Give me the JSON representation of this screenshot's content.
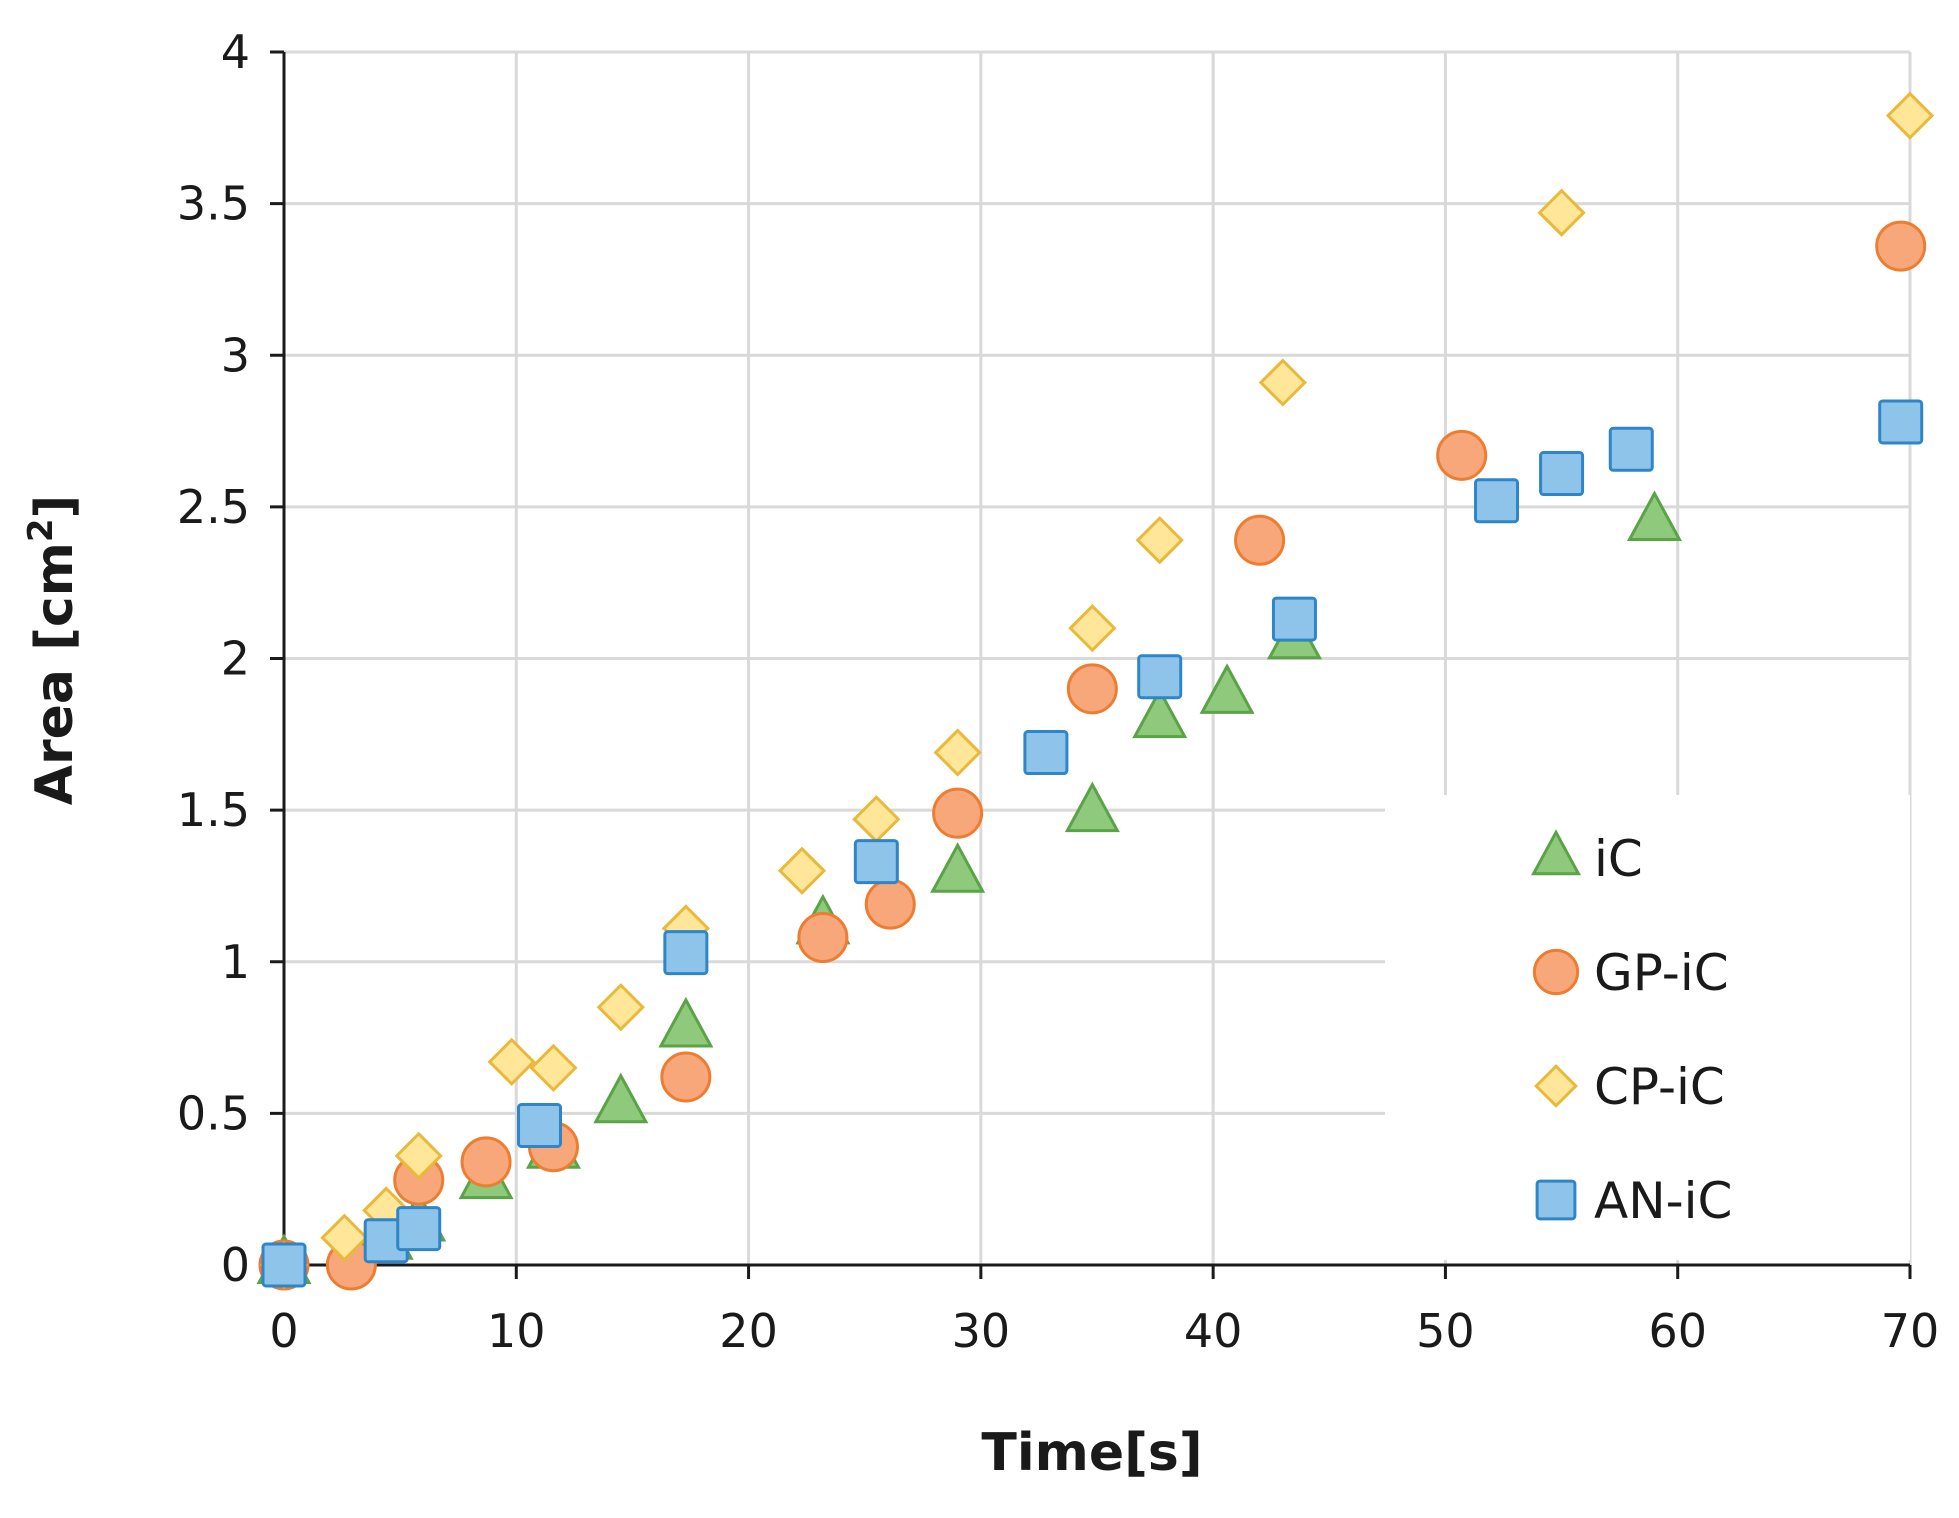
{
  "chart_data": {
    "type": "scatter",
    "xlabel": "Time[s]",
    "ylabel_main": "Area [cm",
    "ylabel_sup": "2",
    "ylabel_end": "]",
    "xlim": [
      0,
      70
    ],
    "ylim": [
      0,
      4
    ],
    "xticks": [
      0,
      10,
      20,
      30,
      40,
      50,
      60,
      70
    ],
    "yticks": [
      0,
      0.5,
      1,
      1.5,
      2,
      2.5,
      3,
      3.5,
      4
    ],
    "ytick_labels": [
      "0",
      "0.5",
      "1",
      "1.5",
      "2",
      "2.5",
      "3",
      "3.5",
      "4"
    ],
    "grid": true,
    "legend_position": "bottom-right",
    "series": [
      {
        "name": "iC",
        "marker": "triangle",
        "fill": "#8fc97b",
        "stroke": "#5aa346",
        "points": [
          [
            0,
            0
          ],
          [
            4.4,
            0.08
          ],
          [
            5.8,
            0.14
          ],
          [
            8.7,
            0.28
          ],
          [
            11.6,
            0.38
          ],
          [
            14.5,
            0.53
          ],
          [
            17.3,
            0.78
          ],
          [
            23.2,
            1.12
          ],
          [
            29,
            1.29
          ],
          [
            34.8,
            1.49
          ],
          [
            37.7,
            1.8
          ],
          [
            40.6,
            1.88
          ],
          [
            43.5,
            2.06
          ],
          [
            59,
            2.45
          ]
        ]
      },
      {
        "name": "GP-iC",
        "marker": "circle",
        "fill": "#f8a77a",
        "stroke": "#ed7d31",
        "points": [
          [
            0,
            0
          ],
          [
            2.9,
            0
          ],
          [
            5.8,
            0.28
          ],
          [
            8.7,
            0.34
          ],
          [
            11.6,
            0.39
          ],
          [
            17.3,
            0.62
          ],
          [
            23.2,
            1.08
          ],
          [
            26.1,
            1.19
          ],
          [
            29,
            1.49
          ],
          [
            34.8,
            1.9
          ],
          [
            42,
            2.39
          ],
          [
            50.7,
            2.67
          ],
          [
            69.6,
            3.36
          ]
        ]
      },
      {
        "name": "CP-iC",
        "marker": "diamond",
        "fill": "#ffe699",
        "stroke": "#e8b93a",
        "points": [
          [
            0,
            0
          ],
          [
            2.6,
            0.09
          ],
          [
            4.4,
            0.18
          ],
          [
            5.8,
            0.36
          ],
          [
            9.8,
            0.67
          ],
          [
            11.6,
            0.65
          ],
          [
            14.5,
            0.85
          ],
          [
            17.3,
            1.11
          ],
          [
            22.3,
            1.3
          ],
          [
            25.5,
            1.47
          ],
          [
            29,
            1.69
          ],
          [
            34.8,
            2.1
          ],
          [
            37.7,
            2.39
          ],
          [
            43,
            2.91
          ],
          [
            55,
            3.47
          ],
          [
            70,
            3.79
          ]
        ]
      },
      {
        "name": "AN-iC",
        "marker": "square",
        "fill": "#8ec3ea",
        "stroke": "#2e86c8",
        "points": [
          [
            0,
            0
          ],
          [
            4.4,
            0.08
          ],
          [
            5.8,
            0.12
          ],
          [
            11,
            0.46
          ],
          [
            17.3,
            1.03
          ],
          [
            25.5,
            1.33
          ],
          [
            32.8,
            1.69
          ],
          [
            37.7,
            1.94
          ],
          [
            43.5,
            2.13
          ],
          [
            52.2,
            2.52
          ],
          [
            55,
            2.61
          ],
          [
            58,
            2.69
          ],
          [
            69.6,
            2.78
          ]
        ]
      }
    ]
  }
}
